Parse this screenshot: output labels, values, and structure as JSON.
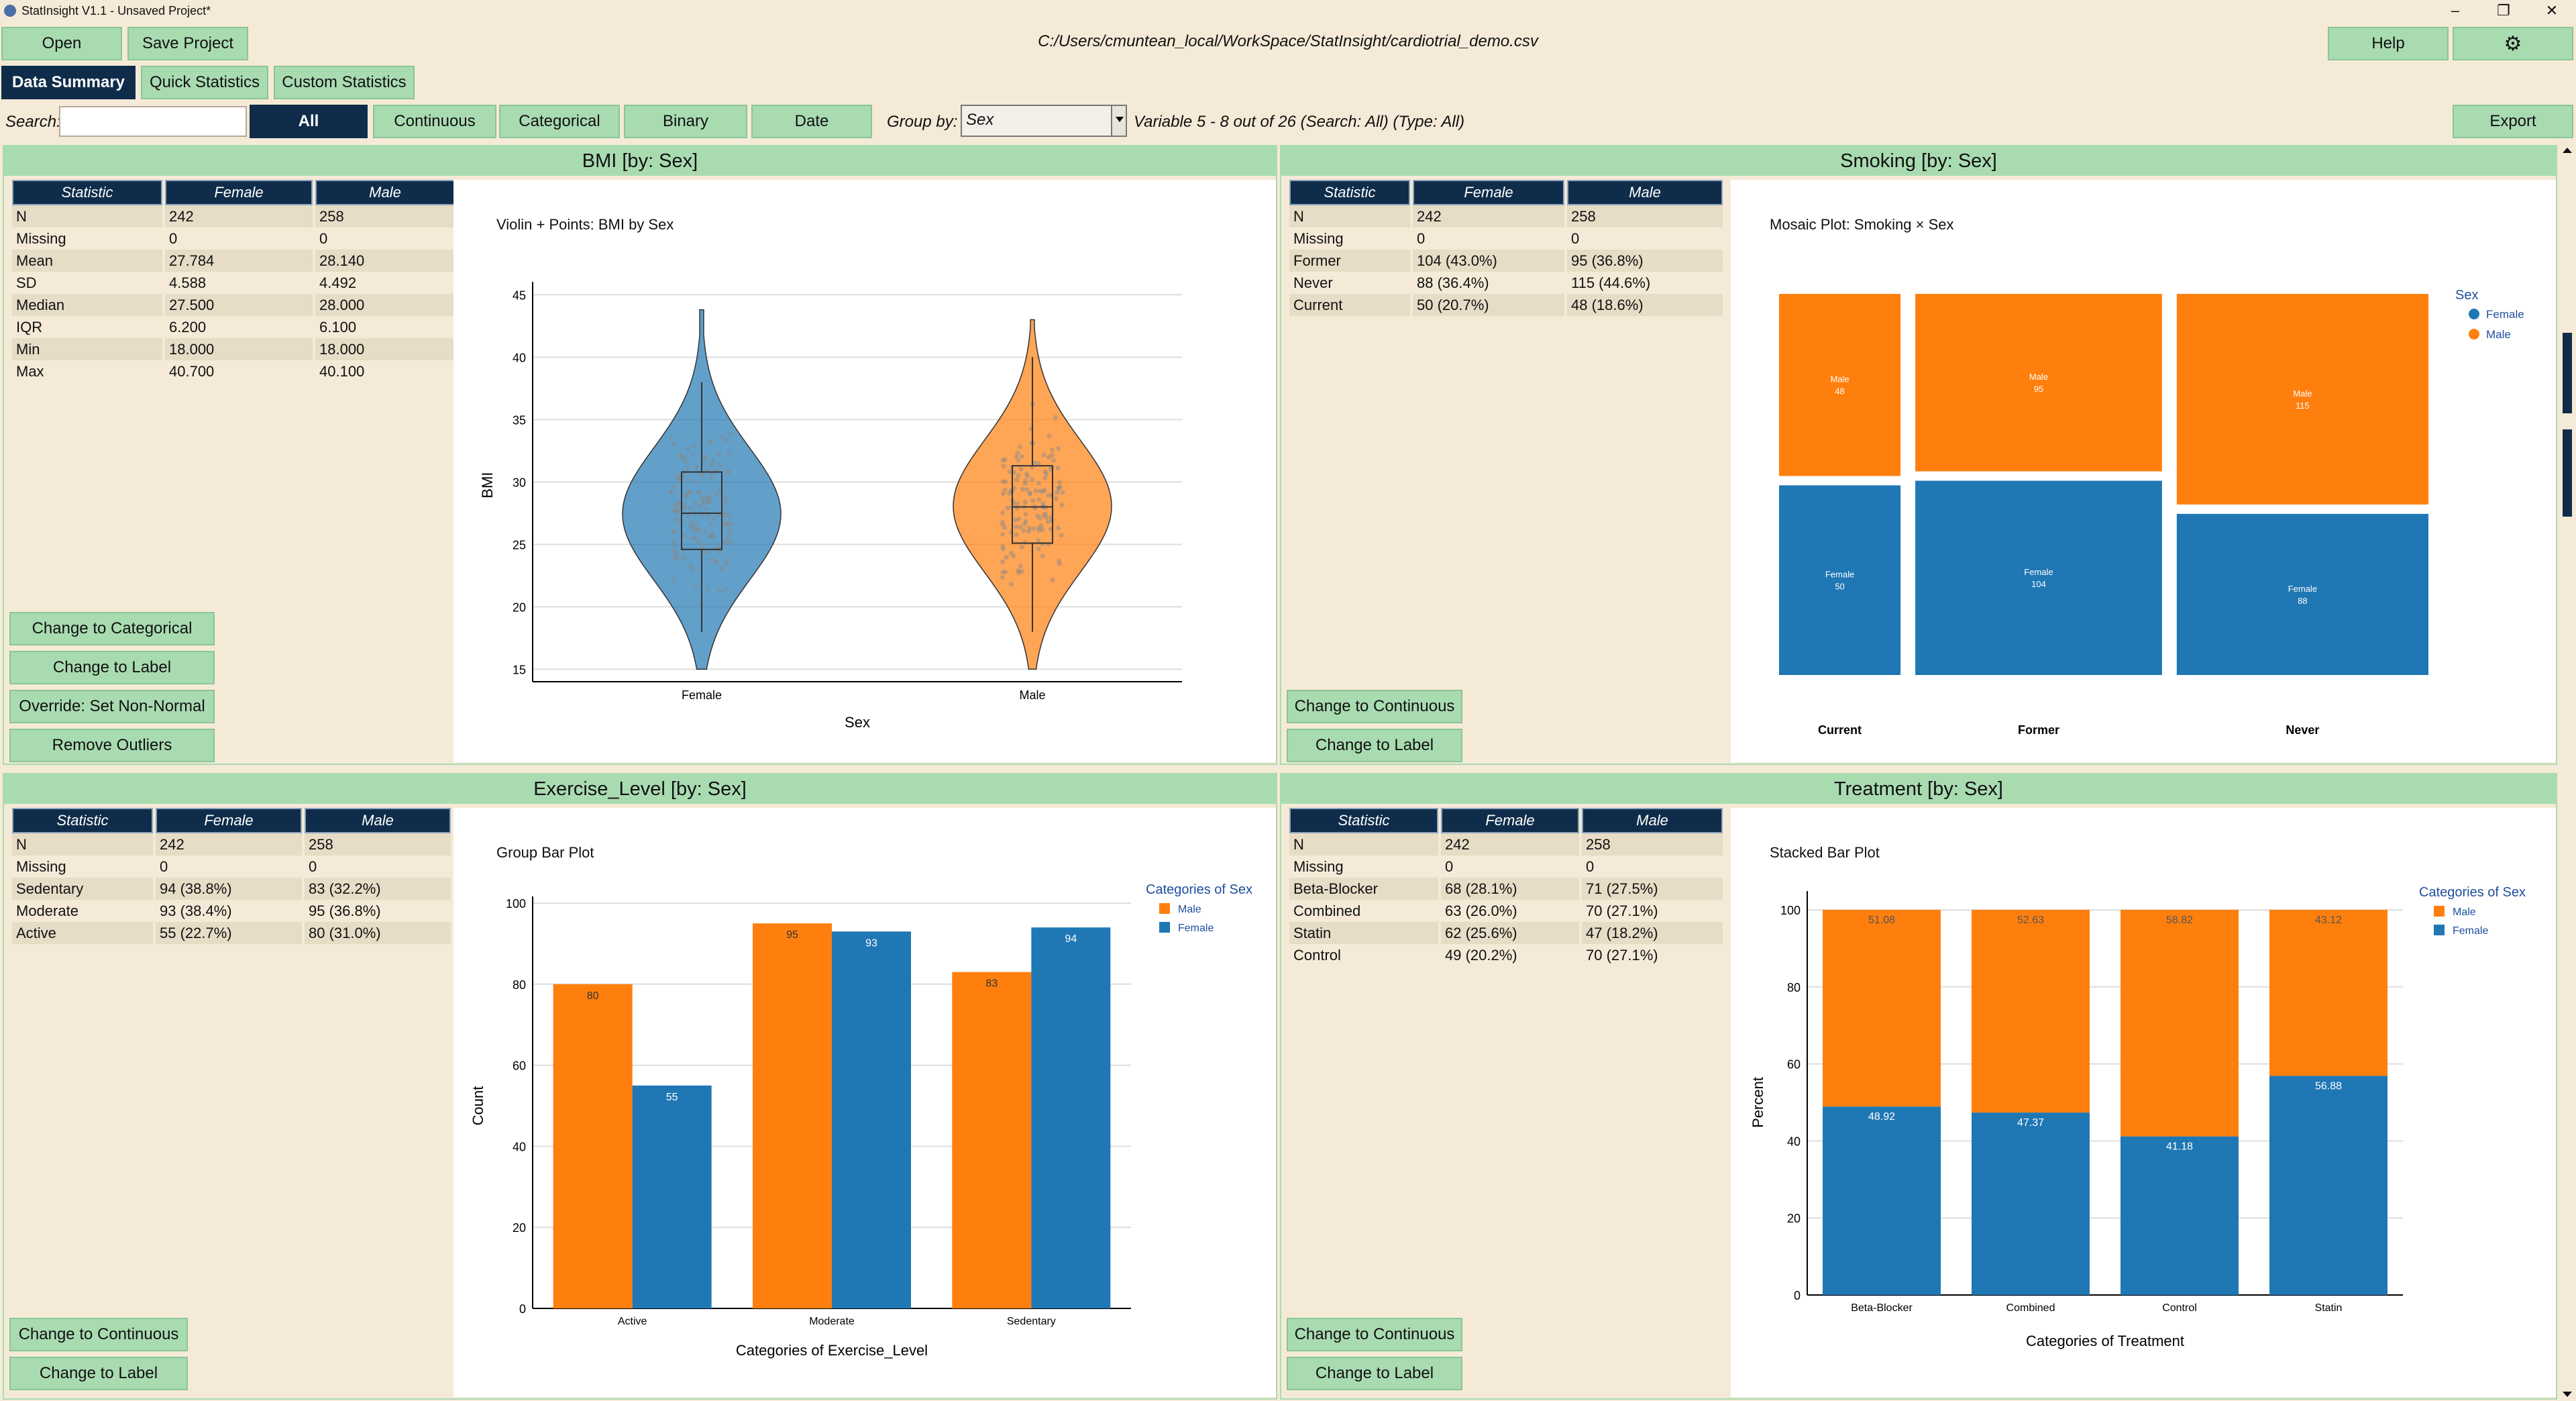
{
  "window": {
    "title": "StatInsight V1.1 - Unsaved Project*",
    "min": "–",
    "max": "❐",
    "close": "✕"
  },
  "toolbar": {
    "open": "Open",
    "save": "Save Project",
    "path": "C:/Users/cmuntean_local/WorkSpace/StatInsight/cardiotrial_demo.csv",
    "help": "Help",
    "settings_icon": "⚙"
  },
  "tabs": [
    {
      "label": "Data Summary",
      "active": true
    },
    {
      "label": "Quick Statistics"
    },
    {
      "label": "Custom Statistics"
    }
  ],
  "filter": {
    "search_label": "Search:",
    "search_value": "",
    "types": [
      "All",
      "Continuous",
      "Categorical",
      "Binary",
      "Date"
    ],
    "groupby_label": "Group by:",
    "groupby_value": "Sex",
    "status": "Variable 5 - 8 out of 26 (Search: All) (Type: All)",
    "export": "Export"
  },
  "panels": [
    {
      "title": "BMI  [by: Sex]",
      "headers": [
        "Statistic",
        "Female",
        "Male"
      ],
      "rows": [
        [
          "N",
          "242",
          "258"
        ],
        [
          "Missing",
          "0",
          "0"
        ],
        [
          "Mean",
          "27.784",
          "28.140"
        ],
        [
          "SD",
          "4.588",
          "4.492"
        ],
        [
          "Median",
          "27.500",
          "28.000"
        ],
        [
          "IQR",
          "6.200",
          "6.100"
        ],
        [
          "Min",
          "18.000",
          "18.000"
        ],
        [
          "Max",
          "40.700",
          "40.100"
        ]
      ],
      "buttons": [
        "Change to Categorical",
        "Change to Label",
        "Override: Set Non-Normal",
        "Remove Outliers"
      ]
    },
    {
      "title": "Smoking  [by: Sex]",
      "headers": [
        "Statistic",
        "Female",
        "Male"
      ],
      "rows": [
        [
          "N",
          "242",
          "258"
        ],
        [
          "Missing",
          "0",
          "0"
        ],
        [
          "Former",
          "104 (43.0%)",
          "95 (36.8%)"
        ],
        [
          "Never",
          "88 (36.4%)",
          "115 (44.6%)"
        ],
        [
          "Current",
          "50 (20.7%)",
          "48 (18.6%)"
        ]
      ],
      "buttons": [
        "Change to Continuous",
        "Change to Label"
      ]
    },
    {
      "title": "Exercise_Level  [by: Sex]",
      "headers": [
        "Statistic",
        "Female",
        "Male"
      ],
      "rows": [
        [
          "N",
          "242",
          "258"
        ],
        [
          "Missing",
          "0",
          "0"
        ],
        [
          "Sedentary",
          "94 (38.8%)",
          "83 (32.2%)"
        ],
        [
          "Moderate",
          "93 (38.4%)",
          "95 (36.8%)"
        ],
        [
          "Active",
          "55 (22.7%)",
          "80 (31.0%)"
        ]
      ],
      "buttons": [
        "Change to Continuous",
        "Change to Label"
      ]
    },
    {
      "title": "Treatment  [by: Sex]",
      "headers": [
        "Statistic",
        "Female",
        "Male"
      ],
      "rows": [
        [
          "N",
          "242",
          "258"
        ],
        [
          "Missing",
          "0",
          "0"
        ],
        [
          "Beta-Blocker",
          "68 (28.1%)",
          "71 (27.5%)"
        ],
        [
          "Combined",
          "63 (26.0%)",
          "70 (27.1%)"
        ],
        [
          "Statin",
          "62 (25.6%)",
          "47 (18.2%)"
        ],
        [
          "Control",
          "49 (20.2%)",
          "70 (27.1%)"
        ]
      ],
      "buttons": [
        "Change to Continuous",
        "Change to Label"
      ]
    }
  ],
  "colors": {
    "female": "#1f77b4",
    "male": "#ff7f0e",
    "accent": "#a9dbb1",
    "header": "#0f2d4a"
  },
  "chart_data": [
    {
      "type": "violin",
      "title": "Violin + Points: BMI by Sex",
      "xlabel": "Sex",
      "ylabel": "BMI",
      "categories": [
        "Female",
        "Male"
      ],
      "ylim": [
        14,
        45.5
      ],
      "yticks": [
        15,
        20,
        25,
        30,
        35,
        40,
        45
      ],
      "series": [
        {
          "name": "Female",
          "min": 15,
          "q1": 24.6,
          "median": 27.5,
          "q3": 30.8,
          "max": 44,
          "whisker_lo": 18,
          "whisker_hi": 38
        },
        {
          "name": "Male",
          "min": 15,
          "q1": 25.1,
          "median": 28,
          "q3": 31.3,
          "max": 43.2,
          "whisker_lo": 18,
          "whisker_hi": 40
        }
      ]
    },
    {
      "type": "mosaic",
      "title": "Mosaic Plot: Smoking × Sex",
      "legend_title": "Sex",
      "legend": [
        "Female",
        "Male"
      ],
      "categories": [
        "Current",
        "Former",
        "Never"
      ],
      "series": [
        {
          "name": "Female",
          "values": [
            50,
            104,
            88
          ]
        },
        {
          "name": "Male",
          "values": [
            48,
            95,
            115
          ]
        }
      ]
    },
    {
      "type": "bar",
      "title": "Group Bar Plot",
      "xlabel": "Categories of Exercise_Level",
      "ylabel": "Count",
      "legend_title": "Categories of  Sex",
      "categories": [
        "Active",
        "Moderate",
        "Sedentary"
      ],
      "ylim": [
        0,
        100
      ],
      "yticks": [
        0,
        20,
        40,
        60,
        80,
        100
      ],
      "series": [
        {
          "name": "Male",
          "values": [
            80,
            95,
            83
          ]
        },
        {
          "name": "Female",
          "values": [
            55,
            93,
            94
          ]
        }
      ]
    },
    {
      "type": "stacked-bar",
      "title": "Stacked Bar Plot",
      "xlabel": "Categories of Treatment",
      "ylabel": "Percent",
      "legend_title": "Categories of  Sex",
      "categories": [
        "Beta-Blocker",
        "Combined",
        "Control",
        "Statin"
      ],
      "ylim": [
        0,
        100
      ],
      "yticks": [
        0,
        20,
        40,
        60,
        80,
        100
      ],
      "series": [
        {
          "name": "Male",
          "values": [
            51.08,
            52.63,
            58.82,
            43.12
          ]
        },
        {
          "name": "Female",
          "values": [
            48.92,
            47.37,
            41.18,
            56.88
          ]
        }
      ]
    }
  ]
}
